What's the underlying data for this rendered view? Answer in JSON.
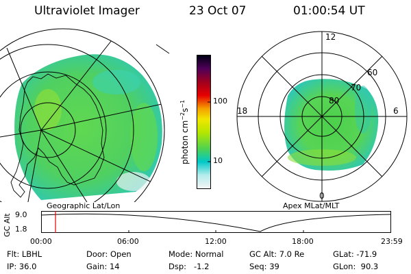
{
  "header": {
    "instrument": "Ultraviolet Imager",
    "date": "23 Oct 07",
    "time": "01:00:54 UT"
  },
  "left_panel": {
    "caption": "Geographic Lat/Lon"
  },
  "right_panel": {
    "caption": "Apex MLat/MLT",
    "mlt_labels": [
      "12",
      "18",
      "6",
      "0"
    ],
    "mlat_labels": [
      "80",
      "70",
      "60"
    ]
  },
  "colorbar": {
    "unit_main": "photon cm",
    "unit_exp1": "−2",
    "unit_mid": "s",
    "unit_exp2": "−1",
    "tick_labels": [
      "100",
      "10"
    ],
    "colors": [
      "#f2f2f2",
      "#00c8c8",
      "#50d250",
      "#c8e600",
      "#f5e600",
      "#f59600",
      "#e60000",
      "#a00014",
      "#40005a",
      "#000010"
    ]
  },
  "timeline": {
    "ylabel": "GC Alt",
    "y_ticks": [
      "9.0",
      "1.8"
    ],
    "x_ticks": [
      "00:00",
      "06:00",
      "12:00",
      "18:00",
      "23:59"
    ],
    "marker_time": "01:00",
    "marker_color": "#e60000"
  },
  "footer": {
    "row1": [
      {
        "label": "Flt:",
        "value": "LBHL"
      },
      {
        "label": "Door:",
        "value": "Open"
      },
      {
        "label": "Mode:",
        "value": "Normal"
      },
      {
        "label": "GC Alt:",
        "value": "7.0 Re"
      },
      {
        "label": "GLat:",
        "value": "-71.9"
      }
    ],
    "row2": [
      {
        "label": "IP:",
        "value": "36.0"
      },
      {
        "label": "Gain:",
        "value": "14"
      },
      {
        "label": "Dsp:",
        "value": "  -1.2"
      },
      {
        "label": "Seq:",
        "value": "39"
      },
      {
        "label": "GLon:",
        "value": " 90.3"
      }
    ]
  }
}
